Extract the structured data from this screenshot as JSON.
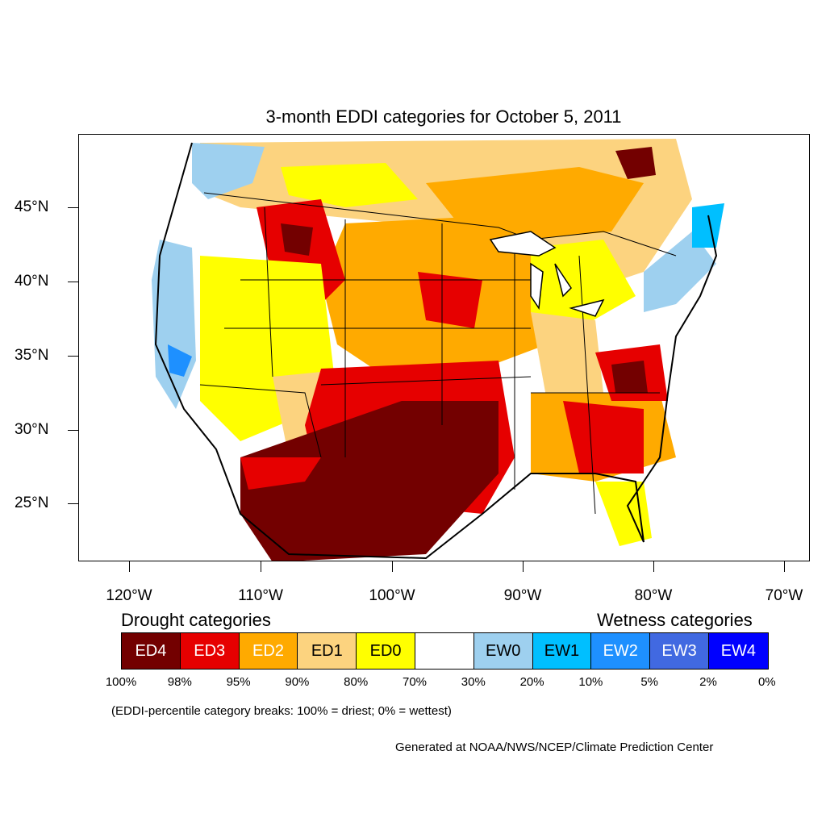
{
  "title": "3-month EDDI categories for October 5, 2011",
  "lat_labels": [
    "45°N",
    "40°N",
    "35°N",
    "30°N",
    "25°N"
  ],
  "lon_labels": [
    "120°W",
    "110°W",
    "100°W",
    "90°W",
    "80°W",
    "70°W"
  ],
  "drought_heading": "Drought categories",
  "wetness_heading": "Wetness categories",
  "legend": [
    {
      "label": "ED4",
      "color": "#730000",
      "text_color": "#ffffff"
    },
    {
      "label": "ED3",
      "color": "#e60000",
      "text_color": "#ffffff"
    },
    {
      "label": "ED2",
      "color": "#ffaa00",
      "text_color": "#ffffff"
    },
    {
      "label": "ED1",
      "color": "#fcd37f",
      "text_color": "#000000"
    },
    {
      "label": "ED0",
      "color": "#ffff00",
      "text_color": "#000000"
    },
    {
      "label": "",
      "color": "#ffffff",
      "text_color": "#000000"
    },
    {
      "label": "EW0",
      "color": "#9ed0ef",
      "text_color": "#000000"
    },
    {
      "label": "EW1",
      "color": "#00bfff",
      "text_color": "#000000"
    },
    {
      "label": "EW2",
      "color": "#1e90ff",
      "text_color": "#ffffff"
    },
    {
      "label": "EW3",
      "color": "#4169e1",
      "text_color": "#ffffff"
    },
    {
      "label": "EW4",
      "color": "#0000ff",
      "text_color": "#ffffff"
    }
  ],
  "percent_breaks": [
    "100%",
    "98%",
    "95%",
    "90%",
    "80%",
    "70%",
    "30%",
    "20%",
    "10%",
    "5%",
    "2%",
    "0%"
  ],
  "note": "(EDDI-percentile category breaks: 100% = driest; 0% = wettest)",
  "credit": "Generated at NOAA/NWS/NCEP/Climate Prediction Center"
}
